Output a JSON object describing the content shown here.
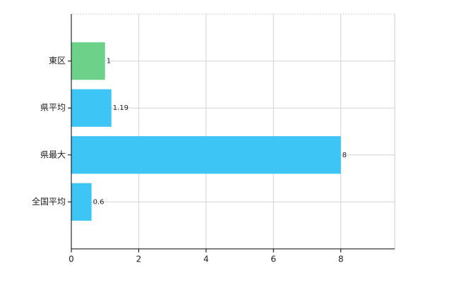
{
  "chart_data": {
    "type": "bar",
    "orientation": "horizontal",
    "categories": [
      "東区",
      "県平均",
      "県最大",
      "全国平均"
    ],
    "values": [
      1,
      1.19,
      8,
      0.6
    ],
    "colors": [
      "#6dd18a",
      "#3dc5f5",
      "#3dc5f5",
      "#3dc5f5"
    ],
    "xlim": [
      0,
      9.6
    ],
    "xticks": [
      0,
      2,
      4,
      6,
      8
    ],
    "grid": true
  }
}
